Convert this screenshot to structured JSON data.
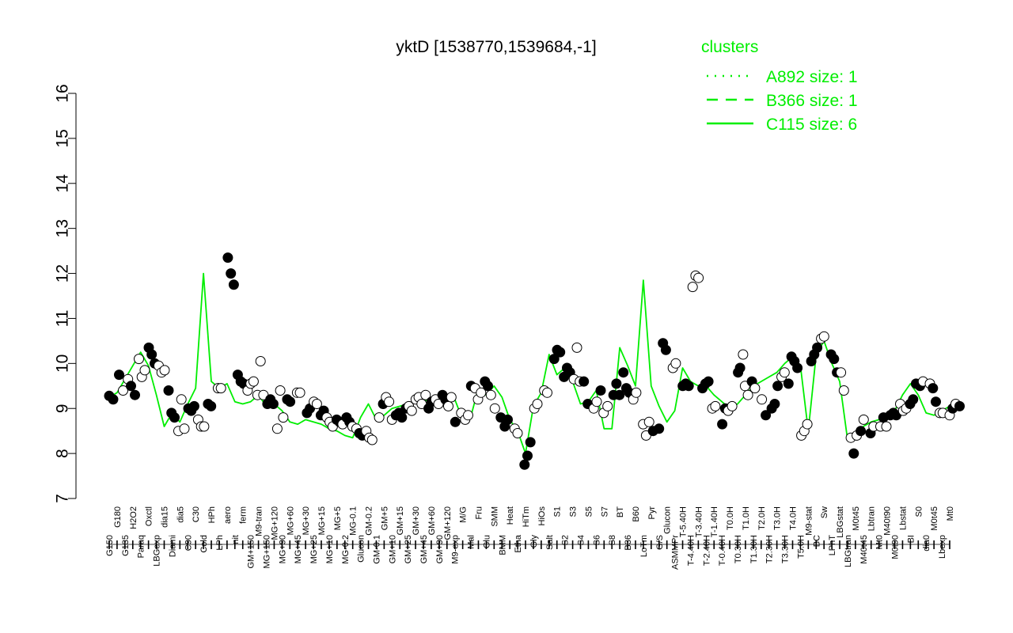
{
  "chart_data": {
    "type": "line",
    "title": "yktD [1538770,1539684,-1]",
    "xlabel": "",
    "ylabel": "",
    "ylim": [
      7,
      16
    ],
    "y_ticks": [
      "7",
      "8",
      "9",
      "10",
      "11",
      "12",
      "13",
      "14",
      "15",
      "16"
    ],
    "grid": false,
    "legend": {
      "title": "clusters",
      "placement": "top-right",
      "color": "#00ee00",
      "entries": [
        {
          "label": "A892 size: 1",
          "style": "dotted"
        },
        {
          "label": "B366 size: 1",
          "style": "dashed"
        },
        {
          "label": "C115 size: 6",
          "style": "solid"
        }
      ]
    },
    "x_tick_labels": [
      "G150",
      "G180",
      "G135",
      "H2O2",
      "Paraq",
      "Oxctl",
      "LBGexp",
      "dia15",
      "Diami",
      "dia5",
      "C90",
      "C30",
      "Cold",
      "HPh",
      "LPh",
      "aero",
      "nit",
      "ferm",
      "GM+150",
      "M9-tran",
      "MG+150",
      "MG+120",
      "MG+90",
      "MG+60",
      "MG+45",
      "MG+30",
      "MG+25",
      "MG+15",
      "MG+10",
      "MG+5",
      "MG-0.2",
      "MG-0.1",
      "Glucon",
      "GM-0.2",
      "GM-0.1",
      "GM+5",
      "GM+10",
      "GM+15",
      "GM+25",
      "GM+30",
      "GM+45",
      "GM+60",
      "GM+90",
      "GM+120",
      "M9-exp",
      "M/G",
      "Mal",
      "Fru",
      "Glu",
      "SMM",
      "BMM",
      "Heat",
      "Etha",
      "HiTm",
      "Gly",
      "HiOs",
      "Salt",
      "S1",
      "S2",
      "S3",
      "S4",
      "S5",
      "S6",
      "S7",
      "S8",
      "BT",
      "B36",
      "B60",
      "LoTm",
      "Pyr",
      "G/S",
      "Glucon",
      "ASMMPr",
      "T-5.40H",
      "T-4.40H",
      "T-3.40H",
      "T-2.40H",
      "T-1.40H",
      "T-0.40H",
      "T0.0H",
      "T0.30H",
      "T1.0H",
      "T1.30H",
      "T2.0H",
      "T2.30H",
      "T3.0H",
      "T3.30H",
      "T4.0H",
      "T5.0H",
      "M9-stat",
      "BC",
      "Sw",
      "LPhT",
      "LBGstat",
      "LBGtran",
      "M0t45",
      "M40t45",
      "Lbtran",
      "Mt0",
      "M40t90",
      "M0t90",
      "Lbstat",
      "BI",
      "S0",
      "dia0",
      "M0t45",
      "Lbexp",
      "Mt0"
    ],
    "series": [
      {
        "values": [
          9.25,
          9.35,
          9.65,
          9.95,
          10.25,
          9.95,
          9.3,
          8.6,
          8.9,
          8.7,
          9.1,
          9.45,
          12.0,
          9.6,
          9.45,
          9.55,
          9.15,
          9.1,
          9.15,
          9.3,
          9.05,
          9.1,
          8.95,
          8.7,
          8.65,
          8.75,
          8.7,
          8.65,
          8.55,
          8.5,
          8.4,
          8.35,
          8.8,
          9.1,
          8.75,
          8.85,
          9.0,
          9.05,
          9.1,
          9.15,
          9.2,
          9.15,
          9.2,
          9.25,
          9.2,
          8.75,
          8.8,
          9.45,
          9.3,
          9.5,
          9.25,
          8.75,
          8.5,
          8.0,
          9.05,
          9.35,
          10.2,
          9.75,
          9.9,
          9.6,
          9.1,
          9.15,
          9.4,
          8.55,
          8.55,
          10.35,
          9.95,
          9.5,
          11.85,
          9.5,
          9.05,
          8.7,
          8.95,
          9.9,
          9.6,
          9.5,
          9.5,
          9.3,
          9.15,
          9.0,
          9.1,
          9.3,
          9.5,
          9.6,
          9.7,
          9.8,
          10.0,
          10.15,
          9.95,
          8.5,
          10.2,
          10.5,
          10.0,
          9.6,
          8.3,
          8.45,
          8.6,
          8.7,
          8.75,
          8.85,
          8.95,
          9.3,
          9.55,
          9.3,
          8.9,
          8.85,
          8.95,
          9.05
        ]
      }
    ],
    "markers": [
      {
        "x": 0,
        "y": 9.28,
        "f": 1
      },
      {
        "x": 0.4,
        "y": 9.2,
        "f": 1
      },
      {
        "x": 1,
        "y": 9.75,
        "f": 1
      },
      {
        "x": 1.4,
        "y": 9.4,
        "f": 0
      },
      {
        "x": 1.9,
        "y": 9.65,
        "f": 0
      },
      {
        "x": 2.2,
        "y": 9.5,
        "f": 1
      },
      {
        "x": 2.6,
        "y": 9.3,
        "f": 1
      },
      {
        "x": 3,
        "y": 10.1,
        "f": 0
      },
      {
        "x": 3.3,
        "y": 9.7,
        "f": 0
      },
      {
        "x": 3.6,
        "y": 9.85,
        "f": 0
      },
      {
        "x": 4,
        "y": 10.35,
        "f": 1
      },
      {
        "x": 4.3,
        "y": 10.2,
        "f": 1
      },
      {
        "x": 4.6,
        "y": 10.0,
        "f": 1
      },
      {
        "x": 5,
        "y": 9.95,
        "f": 0
      },
      {
        "x": 5.3,
        "y": 9.8,
        "f": 0
      },
      {
        "x": 5.6,
        "y": 9.85,
        "f": 0
      },
      {
        "x": 6,
        "y": 9.4,
        "f": 1
      },
      {
        "x": 6.3,
        "y": 8.9,
        "f": 1
      },
      {
        "x": 6.6,
        "y": 8.8,
        "f": 1
      },
      {
        "x": 7,
        "y": 8.5,
        "f": 0
      },
      {
        "x": 7.3,
        "y": 9.2,
        "f": 0
      },
      {
        "x": 7.6,
        "y": 8.55,
        "f": 0
      },
      {
        "x": 8,
        "y": 9.0,
        "f": 1
      },
      {
        "x": 8.3,
        "y": 8.95,
        "f": 1
      },
      {
        "x": 8.6,
        "y": 9.05,
        "f": 1
      },
      {
        "x": 9,
        "y": 8.75,
        "f": 0
      },
      {
        "x": 9.3,
        "y": 8.6,
        "f": 0
      },
      {
        "x": 9.6,
        "y": 8.6,
        "f": 0
      },
      {
        "x": 10,
        "y": 9.1,
        "f": 1
      },
      {
        "x": 10.3,
        "y": 9.05,
        "f": 1
      },
      {
        "x": 11,
        "y": 9.45,
        "f": 0
      },
      {
        "x": 11.3,
        "y": 9.45,
        "f": 0
      },
      {
        "x": 12,
        "y": 12.35,
        "f": 1
      },
      {
        "x": 12.3,
        "y": 12.0,
        "f": 1
      },
      {
        "x": 12.6,
        "y": 11.75,
        "f": 1
      },
      {
        "x": 13,
        "y": 9.75,
        "f": 1
      },
      {
        "x": 13.3,
        "y": 9.6,
        "f": 1
      },
      {
        "x": 13.6,
        "y": 9.55,
        "f": 1
      },
      {
        "x": 14,
        "y": 9.4,
        "f": 0
      },
      {
        "x": 14.3,
        "y": 9.55,
        "f": 0
      },
      {
        "x": 14.6,
        "y": 9.6,
        "f": 0
      },
      {
        "x": 15,
        "y": 9.3,
        "f": 0
      },
      {
        "x": 15.3,
        "y": 10.05,
        "f": 0
      },
      {
        "x": 15.6,
        "y": 9.3,
        "f": 0
      },
      {
        "x": 16,
        "y": 9.1,
        "f": 1
      },
      {
        "x": 16.3,
        "y": 9.2,
        "f": 1
      },
      {
        "x": 16.6,
        "y": 9.1,
        "f": 1
      },
      {
        "x": 17,
        "y": 8.55,
        "f": 0
      },
      {
        "x": 17.3,
        "y": 9.4,
        "f": 0
      },
      {
        "x": 17.6,
        "y": 8.8,
        "f": 0
      },
      {
        "x": 18,
        "y": 9.2,
        "f": 1
      },
      {
        "x": 18.3,
        "y": 9.15,
        "f": 1
      },
      {
        "x": 19,
        "y": 9.35,
        "f": 0
      },
      {
        "x": 19.3,
        "y": 9.35,
        "f": 0
      },
      {
        "x": 20,
        "y": 8.9,
        "f": 1
      },
      {
        "x": 20.3,
        "y": 9.0,
        "f": 1
      },
      {
        "x": 20.7,
        "y": 9.15,
        "f": 0
      },
      {
        "x": 21,
        "y": 9.1,
        "f": 0
      },
      {
        "x": 21.4,
        "y": 8.85,
        "f": 1
      },
      {
        "x": 21.7,
        "y": 8.95,
        "f": 1
      },
      {
        "x": 22,
        "y": 8.8,
        "f": 0
      },
      {
        "x": 22.3,
        "y": 8.7,
        "f": 0
      },
      {
        "x": 22.6,
        "y": 8.6,
        "f": 0
      },
      {
        "x": 23,
        "y": 8.75,
        "f": 1
      },
      {
        "x": 23.3,
        "y": 8.7,
        "f": 1
      },
      {
        "x": 23.6,
        "y": 8.65,
        "f": 0
      },
      {
        "x": 24,
        "y": 8.8,
        "f": 1
      },
      {
        "x": 24.3,
        "y": 8.7,
        "f": 1
      },
      {
        "x": 24.6,
        "y": 8.6,
        "f": 0
      },
      {
        "x": 25,
        "y": 8.55,
        "f": 0
      },
      {
        "x": 25.3,
        "y": 8.45,
        "f": 1
      },
      {
        "x": 25.6,
        "y": 8.4,
        "f": 1
      },
      {
        "x": 26,
        "y": 8.5,
        "f": 0
      },
      {
        "x": 26.3,
        "y": 8.35,
        "f": 0
      },
      {
        "x": 26.6,
        "y": 8.3,
        "f": 0
      },
      {
        "x": 27.3,
        "y": 8.8,
        "f": 0
      },
      {
        "x": 27.7,
        "y": 9.1,
        "f": 1
      },
      {
        "x": 28,
        "y": 9.25,
        "f": 0
      },
      {
        "x": 28.3,
        "y": 9.15,
        "f": 0
      },
      {
        "x": 28.6,
        "y": 8.75,
        "f": 0
      },
      {
        "x": 29,
        "y": 8.85,
        "f": 1
      },
      {
        "x": 29.3,
        "y": 8.9,
        "f": 1
      },
      {
        "x": 29.6,
        "y": 8.8,
        "f": 1
      },
      {
        "x": 30,
        "y": 9.0,
        "f": 1
      },
      {
        "x": 30.3,
        "y": 9.05,
        "f": 0
      },
      {
        "x": 30.6,
        "y": 8.95,
        "f": 0
      },
      {
        "x": 31,
        "y": 9.2,
        "f": 0
      },
      {
        "x": 31.3,
        "y": 9.25,
        "f": 0
      },
      {
        "x": 31.6,
        "y": 9.1,
        "f": 0
      },
      {
        "x": 32,
        "y": 9.3,
        "f": 0
      },
      {
        "x": 32.3,
        "y": 9.0,
        "f": 1
      },
      {
        "x": 32.6,
        "y": 9.15,
        "f": 1
      },
      {
        "x": 33,
        "y": 9.2,
        "f": 0
      },
      {
        "x": 33.3,
        "y": 9.1,
        "f": 0
      },
      {
        "x": 33.7,
        "y": 9.3,
        "f": 1
      },
      {
        "x": 34,
        "y": 9.2,
        "f": 1
      },
      {
        "x": 34.3,
        "y": 9.05,
        "f": 0
      },
      {
        "x": 34.6,
        "y": 9.25,
        "f": 0
      },
      {
        "x": 35,
        "y": 8.7,
        "f": 1
      },
      {
        "x": 35.6,
        "y": 8.9,
        "f": 0
      },
      {
        "x": 36,
        "y": 8.75,
        "f": 0
      },
      {
        "x": 36.3,
        "y": 8.85,
        "f": 0
      },
      {
        "x": 36.6,
        "y": 9.5,
        "f": 1
      },
      {
        "x": 37,
        "y": 9.45,
        "f": 0
      },
      {
        "x": 37.3,
        "y": 9.2,
        "f": 0
      },
      {
        "x": 37.6,
        "y": 9.35,
        "f": 0
      },
      {
        "x": 38,
        "y": 9.6,
        "f": 1
      },
      {
        "x": 38.3,
        "y": 9.5,
        "f": 1
      },
      {
        "x": 38.6,
        "y": 9.3,
        "f": 0
      },
      {
        "x": 39,
        "y": 9.0,
        "f": 0
      },
      {
        "x": 39.6,
        "y": 8.8,
        "f": 1
      },
      {
        "x": 40,
        "y": 8.6,
        "f": 1
      },
      {
        "x": 40.3,
        "y": 8.75,
        "f": 1
      },
      {
        "x": 41,
        "y": 8.55,
        "f": 0
      },
      {
        "x": 41.3,
        "y": 8.45,
        "f": 0
      },
      {
        "x": 42,
        "y": 7.75,
        "f": 1
      },
      {
        "x": 42.3,
        "y": 7.95,
        "f": 1
      },
      {
        "x": 42.6,
        "y": 8.25,
        "f": 1
      },
      {
        "x": 43,
        "y": 9.0,
        "f": 0
      },
      {
        "x": 43.3,
        "y": 9.1,
        "f": 0
      },
      {
        "x": 44,
        "y": 9.4,
        "f": 0
      },
      {
        "x": 44.3,
        "y": 9.35,
        "f": 0
      },
      {
        "x": 45,
        "y": 10.1,
        "f": 1
      },
      {
        "x": 45.3,
        "y": 10.3,
        "f": 1
      },
      {
        "x": 45.6,
        "y": 10.25,
        "f": 1
      },
      {
        "x": 46,
        "y": 9.7,
        "f": 1
      },
      {
        "x": 46.3,
        "y": 9.9,
        "f": 1
      },
      {
        "x": 46.6,
        "y": 9.8,
        "f": 1
      },
      {
        "x": 47,
        "y": 9.65,
        "f": 0
      },
      {
        "x": 47.3,
        "y": 10.35,
        "f": 0
      },
      {
        "x": 47.6,
        "y": 9.6,
        "f": 0
      },
      {
        "x": 48,
        "y": 9.6,
        "f": 1
      },
      {
        "x": 48.4,
        "y": 9.1,
        "f": 1
      },
      {
        "x": 49,
        "y": 9.0,
        "f": 0
      },
      {
        "x": 49.3,
        "y": 9.15,
        "f": 0
      },
      {
        "x": 49.7,
        "y": 9.4,
        "f": 1
      },
      {
        "x": 50,
        "y": 8.9,
        "f": 0
      },
      {
        "x": 50.4,
        "y": 9.05,
        "f": 0
      },
      {
        "x": 51,
        "y": 9.3,
        "f": 1
      },
      {
        "x": 51.3,
        "y": 9.55,
        "f": 1
      },
      {
        "x": 51.6,
        "y": 9.3,
        "f": 1
      },
      {
        "x": 52,
        "y": 9.8,
        "f": 1
      },
      {
        "x": 52.3,
        "y": 9.45,
        "f": 1
      },
      {
        "x": 52.6,
        "y": 9.35,
        "f": 1
      },
      {
        "x": 53,
        "y": 9.2,
        "f": 0
      },
      {
        "x": 53.3,
        "y": 9.35,
        "f": 0
      },
      {
        "x": 54,
        "y": 8.65,
        "f": 0
      },
      {
        "x": 54.3,
        "y": 8.4,
        "f": 0
      },
      {
        "x": 54.6,
        "y": 8.7,
        "f": 0
      },
      {
        "x": 55,
        "y": 8.5,
        "f": 1
      },
      {
        "x": 55.6,
        "y": 8.55,
        "f": 1
      },
      {
        "x": 56,
        "y": 10.45,
        "f": 1
      },
      {
        "x": 56.3,
        "y": 10.3,
        "f": 1
      },
      {
        "x": 57,
        "y": 9.9,
        "f": 0
      },
      {
        "x": 57.3,
        "y": 10.0,
        "f": 0
      },
      {
        "x": 58,
        "y": 9.5,
        "f": 1
      },
      {
        "x": 58.3,
        "y": 9.55,
        "f": 1
      },
      {
        "x": 58.6,
        "y": 9.5,
        "f": 1
      },
      {
        "x": 59,
        "y": 11.7,
        "f": 0
      },
      {
        "x": 59.3,
        "y": 11.95,
        "f": 0
      },
      {
        "x": 59.6,
        "y": 11.9,
        "f": 0
      },
      {
        "x": 60,
        "y": 9.45,
        "f": 1
      },
      {
        "x": 60.3,
        "y": 9.55,
        "f": 1
      },
      {
        "x": 60.6,
        "y": 9.6,
        "f": 1
      },
      {
        "x": 61,
        "y": 9.0,
        "f": 0
      },
      {
        "x": 61.3,
        "y": 9.05,
        "f": 0
      },
      {
        "x": 62,
        "y": 8.65,
        "f": 1
      },
      {
        "x": 62.3,
        "y": 9.0,
        "f": 1
      },
      {
        "x": 62.6,
        "y": 8.95,
        "f": 0
      },
      {
        "x": 63,
        "y": 9.05,
        "f": 0
      },
      {
        "x": 63.6,
        "y": 9.8,
        "f": 1
      },
      {
        "x": 63.8,
        "y": 9.9,
        "f": 1
      },
      {
        "x": 64.1,
        "y": 10.2,
        "f": 0
      },
      {
        "x": 64.3,
        "y": 9.5,
        "f": 0
      },
      {
        "x": 64.6,
        "y": 9.3,
        "f": 0
      },
      {
        "x": 65,
        "y": 9.6,
        "f": 1
      },
      {
        "x": 65.3,
        "y": 9.45,
        "f": 0
      },
      {
        "x": 66,
        "y": 9.2,
        "f": 0
      },
      {
        "x": 66.4,
        "y": 8.85,
        "f": 1
      },
      {
        "x": 67,
        "y": 9.0,
        "f": 1
      },
      {
        "x": 67.3,
        "y": 9.1,
        "f": 1
      },
      {
        "x": 67.6,
        "y": 9.5,
        "f": 1
      },
      {
        "x": 68,
        "y": 9.7,
        "f": 0
      },
      {
        "x": 68.3,
        "y": 9.8,
        "f": 0
      },
      {
        "x": 68.7,
        "y": 9.55,
        "f": 1
      },
      {
        "x": 69,
        "y": 10.15,
        "f": 1
      },
      {
        "x": 69.3,
        "y": 10.05,
        "f": 1
      },
      {
        "x": 69.6,
        "y": 9.9,
        "f": 1
      },
      {
        "x": 70,
        "y": 8.4,
        "f": 0
      },
      {
        "x": 70.3,
        "y": 8.5,
        "f": 0
      },
      {
        "x": 70.6,
        "y": 8.65,
        "f": 0
      },
      {
        "x": 71,
        "y": 10.05,
        "f": 1
      },
      {
        "x": 71.3,
        "y": 10.2,
        "f": 1
      },
      {
        "x": 71.6,
        "y": 10.35,
        "f": 1
      },
      {
        "x": 72,
        "y": 10.55,
        "f": 0
      },
      {
        "x": 72.3,
        "y": 10.6,
        "f": 0
      },
      {
        "x": 73,
        "y": 10.2,
        "f": 1
      },
      {
        "x": 73.3,
        "y": 10.1,
        "f": 1
      },
      {
        "x": 73.6,
        "y": 9.8,
        "f": 1
      },
      {
        "x": 74,
        "y": 9.8,
        "f": 0
      },
      {
        "x": 74.3,
        "y": 9.4,
        "f": 0
      },
      {
        "x": 75,
        "y": 8.35,
        "f": 0
      },
      {
        "x": 75.3,
        "y": 8.0,
        "f": 1
      },
      {
        "x": 75.6,
        "y": 8.4,
        "f": 0
      },
      {
        "x": 76,
        "y": 8.5,
        "f": 1
      },
      {
        "x": 76.3,
        "y": 8.75,
        "f": 0
      },
      {
        "x": 77,
        "y": 8.45,
        "f": 1
      },
      {
        "x": 77.3,
        "y": 8.6,
        "f": 0
      },
      {
        "x": 78,
        "y": 8.6,
        "f": 0
      },
      {
        "x": 78.3,
        "y": 8.8,
        "f": 1
      },
      {
        "x": 78.6,
        "y": 8.6,
        "f": 0
      },
      {
        "x": 79,
        "y": 8.85,
        "f": 1
      },
      {
        "x": 79.3,
        "y": 8.9,
        "f": 1
      },
      {
        "x": 79.6,
        "y": 8.85,
        "f": 1
      },
      {
        "x": 80,
        "y": 9.1,
        "f": 0
      },
      {
        "x": 80.3,
        "y": 8.95,
        "f": 0
      },
      {
        "x": 80.6,
        "y": 9.0,
        "f": 0
      },
      {
        "x": 81,
        "y": 9.1,
        "f": 1
      },
      {
        "x": 81.3,
        "y": 9.2,
        "f": 1
      },
      {
        "x": 81.6,
        "y": 9.55,
        "f": 1
      },
      {
        "x": 82,
        "y": 9.5,
        "f": 1
      },
      {
        "x": 82.3,
        "y": 9.6,
        "f": 0
      },
      {
        "x": 83,
        "y": 9.55,
        "f": 0
      },
      {
        "x": 83.3,
        "y": 9.45,
        "f": 1
      },
      {
        "x": 83.6,
        "y": 9.15,
        "f": 1
      },
      {
        "x": 84,
        "y": 8.9,
        "f": 0
      },
      {
        "x": 84.3,
        "y": 8.9,
        "f": 0
      },
      {
        "x": 85,
        "y": 8.85,
        "f": 0
      },
      {
        "x": 85.3,
        "y": 9.0,
        "f": 1
      },
      {
        "x": 85.6,
        "y": 9.1,
        "f": 0
      },
      {
        "x": 86,
        "y": 9.05,
        "f": 1
      }
    ]
  }
}
